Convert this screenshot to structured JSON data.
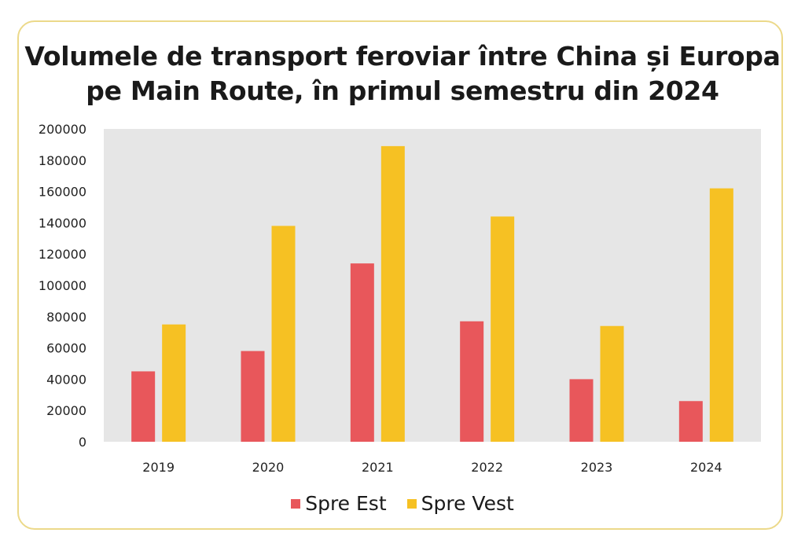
{
  "colors": {
    "background": "#ffffff",
    "card_border": "#ecd98a",
    "plot_area": "#e6e6e6",
    "spre_est": "#e8575b",
    "spre_vest": "#f6c123"
  },
  "chart_data": {
    "type": "bar",
    "title_lines": [
      "Volumele de transport feroviar între China și Europa",
      "pe Main Route, în primul semestru din 2024"
    ],
    "xlabel": "",
    "ylabel": "",
    "categories": [
      "2019",
      "2020",
      "2021",
      "2022",
      "2023",
      "2024"
    ],
    "series": [
      {
        "name": "Spre Est",
        "color": "#e8575b",
        "values": [
          45000,
          58000,
          114000,
          77000,
          40000,
          26000
        ]
      },
      {
        "name": "Spre Vest",
        "color": "#f6c123",
        "values": [
          75000,
          138000,
          189000,
          144000,
          74000,
          162000
        ]
      }
    ],
    "ylim": [
      0,
      200000
    ],
    "yticks": [
      "200000",
      "180000",
      "160000",
      "140000",
      "120000",
      "100000",
      "80000",
      "60000",
      "40000",
      "20000",
      "0"
    ],
    "grid": false,
    "legend_position": "bottom"
  }
}
